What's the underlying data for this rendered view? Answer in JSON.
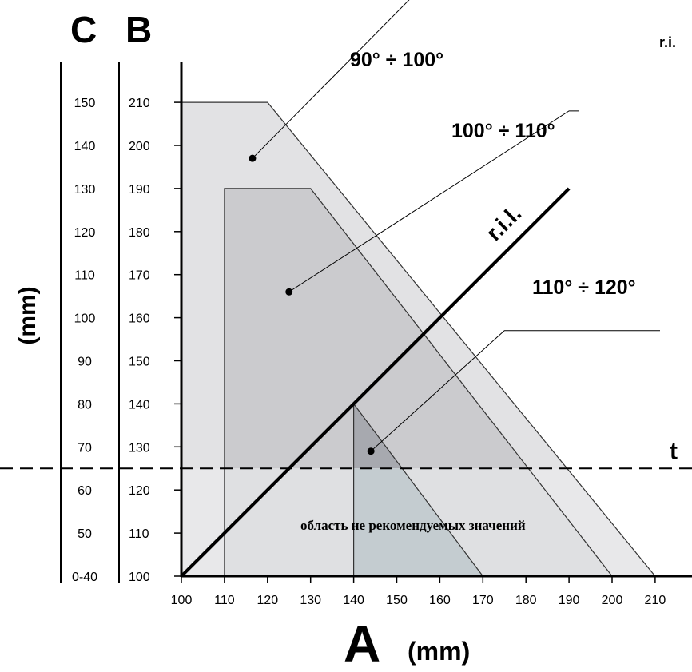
{
  "chart_data": {
    "type": "area",
    "x_axis": {
      "letter": "A",
      "unit": "(mm)",
      "range": [
        100,
        210
      ],
      "ticks": [
        100,
        110,
        120,
        130,
        140,
        150,
        160,
        170,
        180,
        190,
        200,
        210
      ]
    },
    "y_axis_B": {
      "letter": "B",
      "range": [
        100,
        210
      ],
      "ticks": [
        100,
        110,
        120,
        130,
        140,
        150,
        160,
        170,
        180,
        190,
        200,
        210
      ]
    },
    "y_axis_C": {
      "letter": "C",
      "unit": "(mm)",
      "ticks": [
        {
          "label": "0-40",
          "b": 100
        },
        {
          "label": "50",
          "b": 110
        },
        {
          "label": "60",
          "b": 120
        },
        {
          "label": "70",
          "b": 130
        },
        {
          "label": "80",
          "b": 140
        },
        {
          "label": "90",
          "b": 150
        },
        {
          "label": "100",
          "b": 160
        },
        {
          "label": "110",
          "b": 170
        },
        {
          "label": "120",
          "b": 180
        },
        {
          "label": "130",
          "b": 190
        },
        {
          "label": "140",
          "b": 200
        },
        {
          "label": "150",
          "b": 210
        }
      ]
    },
    "series": [
      {
        "name": "90° ÷ 100°",
        "color": "#e2e2e4",
        "polygon": [
          [
            100,
            100
          ],
          [
            100,
            210
          ],
          [
            120,
            210
          ],
          [
            210,
            100
          ]
        ]
      },
      {
        "name": "100° ÷ 110°",
        "color": "#cbcbce",
        "polygon": [
          [
            110,
            100
          ],
          [
            110,
            190
          ],
          [
            130,
            190
          ],
          [
            200,
            100
          ]
        ]
      },
      {
        "name": "110° ÷ 120°",
        "color": "#a7a9af",
        "polygon": [
          [
            140,
            100
          ],
          [
            140,
            140
          ],
          [
            170,
            100
          ]
        ]
      }
    ],
    "line_label": "r.i.l.",
    "line": [
      [
        100,
        100
      ],
      [
        190,
        190
      ]
    ],
    "threshold": {
      "label": "t",
      "b": 125
    },
    "lower_region_note": "область не рекомендуемых значений",
    "corner_label": "r.i."
  }
}
